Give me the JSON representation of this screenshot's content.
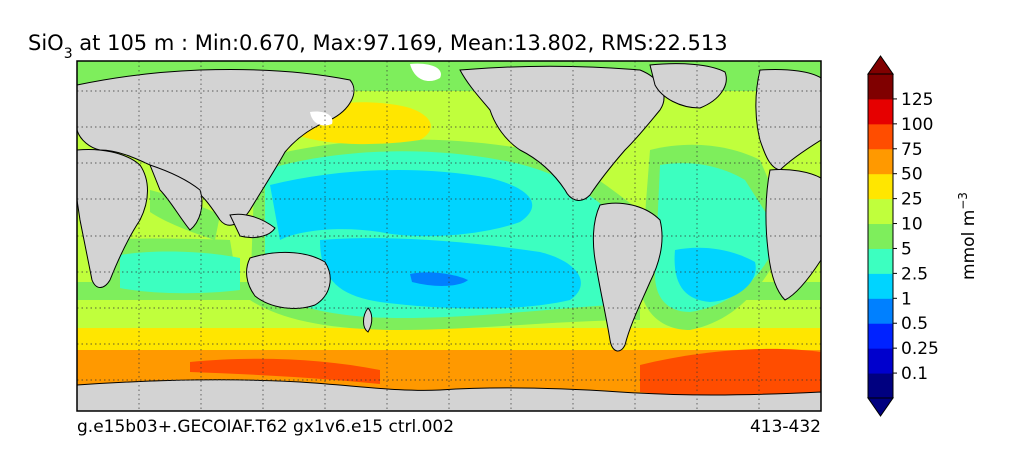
{
  "title": {
    "variable_base": "SiO",
    "variable_subscript": "3",
    "rest": " at 105 m : Min:0.670, Max:97.169, Mean:13.802, RMS:22.513"
  },
  "footer": {
    "case_name": "g.e15b03+.GECOIAF.T62 gx1v6.e15 ctrl.002",
    "years": "413-432"
  },
  "colorbar": {
    "units_base": "mmol m",
    "units_exp": "−3",
    "levels": [
      "0.1",
      "0.25",
      "0.5",
      "1",
      "2.5",
      "5",
      "10",
      "25",
      "50",
      "75",
      "100",
      "125"
    ],
    "colors": [
      "#000080",
      "#0000cd",
      "#0022ff",
      "#0080ff",
      "#00d4ff",
      "#3cffc0",
      "#7eee5c",
      "#c0ff3c",
      "#ffe600",
      "#ff9900",
      "#ff4d00",
      "#e60000",
      "#800000"
    ],
    "extend_low_color": "#000080",
    "extend_high_color": "#800000"
  },
  "map": {
    "land_color": "#d3d3d3",
    "nodata_color": "#ffffff",
    "grid_style": "dotted"
  }
}
